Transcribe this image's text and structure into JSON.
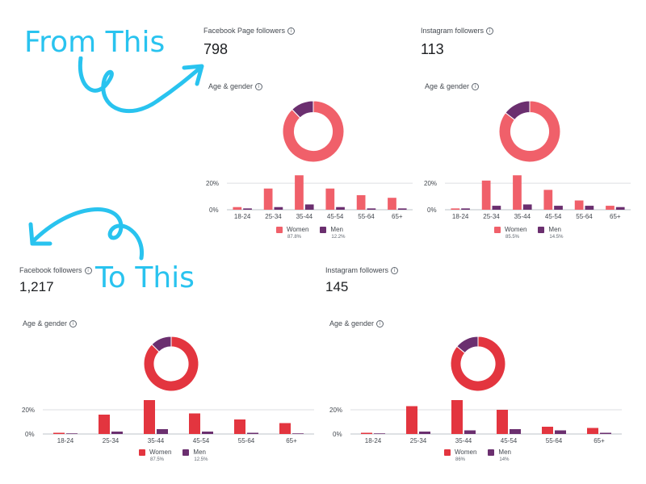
{
  "annotations": {
    "from_text": "From This",
    "to_text": "To This"
  },
  "colors": {
    "women_before": "#f0606a",
    "women_after": "#e3353f",
    "men": "#6b2f6f",
    "arrow": "#29c3ef"
  },
  "panels": [
    {
      "id": "fb-before",
      "title": "Facebook Page followers",
      "count": "798",
      "section": "Age & gender",
      "women_pct": "87.8%",
      "men_pct": "12.2%",
      "women_share": 0.878,
      "legend_women": "Women",
      "legend_men": "Men",
      "chart_data": {
        "type": "bar",
        "categories": [
          "18-24",
          "25-34",
          "35-44",
          "45-54",
          "55-64",
          "65+"
        ],
        "series": [
          {
            "name": "Women",
            "values": [
              2,
              16,
              26,
              16,
              11,
              9
            ]
          },
          {
            "name": "Men",
            "values": [
              1,
              2,
              4,
              2,
              1,
              1
            ]
          }
        ],
        "ytick_labels": [
          "20%",
          "0%"
        ],
        "ylim": [
          0,
          28
        ]
      }
    },
    {
      "id": "ig-before",
      "title": "Instagram followers",
      "count": "113",
      "section": "Age & gender",
      "women_pct": "85.5%",
      "men_pct": "14.5%",
      "women_share": 0.855,
      "legend_women": "Women",
      "legend_men": "Men",
      "chart_data": {
        "type": "bar",
        "categories": [
          "18-24",
          "25-34",
          "35-44",
          "45-54",
          "55-64",
          "65+"
        ],
        "series": [
          {
            "name": "Women",
            "values": [
              1,
              22,
              26,
              15,
              7,
              3
            ]
          },
          {
            "name": "Men",
            "values": [
              1,
              3,
              4,
              3,
              3,
              2
            ]
          }
        ],
        "ytick_labels": [
          "20%",
          "0%"
        ],
        "ylim": [
          0,
          28
        ]
      }
    },
    {
      "id": "fb-after",
      "title": "Facebook followers",
      "count": "1,217",
      "section": "Age & gender",
      "women_pct": "87.5%",
      "men_pct": "12.5%",
      "women_share": 0.875,
      "legend_women": "Women",
      "legend_men": "Men",
      "chart_data": {
        "type": "bar",
        "categories": [
          "18-24",
          "25-34",
          "35-44",
          "45-54",
          "55-64",
          "65+"
        ],
        "series": [
          {
            "name": "Women",
            "values": [
              1,
              16,
              28,
              17,
              12,
              9
            ]
          },
          {
            "name": "Men",
            "values": [
              0.5,
              2,
              4,
              2,
              1,
              0.5
            ]
          }
        ],
        "ytick_labels": [
          "20%",
          "0%"
        ],
        "ylim": [
          0,
          28
        ]
      }
    },
    {
      "id": "ig-after",
      "title": "Instagram followers",
      "count": "145",
      "section": "Age & gender",
      "women_pct": "86%",
      "men_pct": "14%",
      "women_share": 0.86,
      "legend_women": "Women",
      "legend_men": "Men",
      "chart_data": {
        "type": "bar",
        "categories": [
          "18-24",
          "25-34",
          "35-44",
          "45-54",
          "55-64",
          "65+"
        ],
        "series": [
          {
            "name": "Women",
            "values": [
              1,
              23,
              28,
              20,
              6,
              5
            ]
          },
          {
            "name": "Men",
            "values": [
              0.5,
              2,
              3,
              4,
              3,
              1
            ]
          }
        ],
        "ytick_labels": [
          "20%",
          "0%"
        ],
        "ylim": [
          0,
          28
        ]
      }
    }
  ]
}
